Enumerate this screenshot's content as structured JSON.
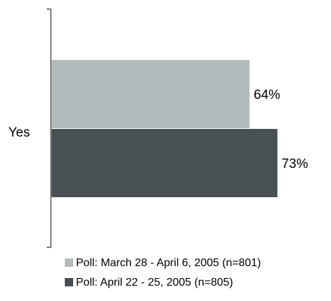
{
  "chart_data": {
    "type": "bar",
    "orientation": "horizontal",
    "categories": [
      "Yes"
    ],
    "series": [
      {
        "name": "Poll: March 28 - April 6, 2005 (n=801)",
        "values": [
          64
        ],
        "label": "64%",
        "color": "#b3bcbc"
      },
      {
        "name": "Poll: April 22 - 25, 2005 (n=805)",
        "values": [
          73
        ],
        "label": "73%",
        "color": "#485054"
      }
    ],
    "xlim": [
      0,
      90
    ],
    "grid": false,
    "legend_position": "bottom"
  }
}
